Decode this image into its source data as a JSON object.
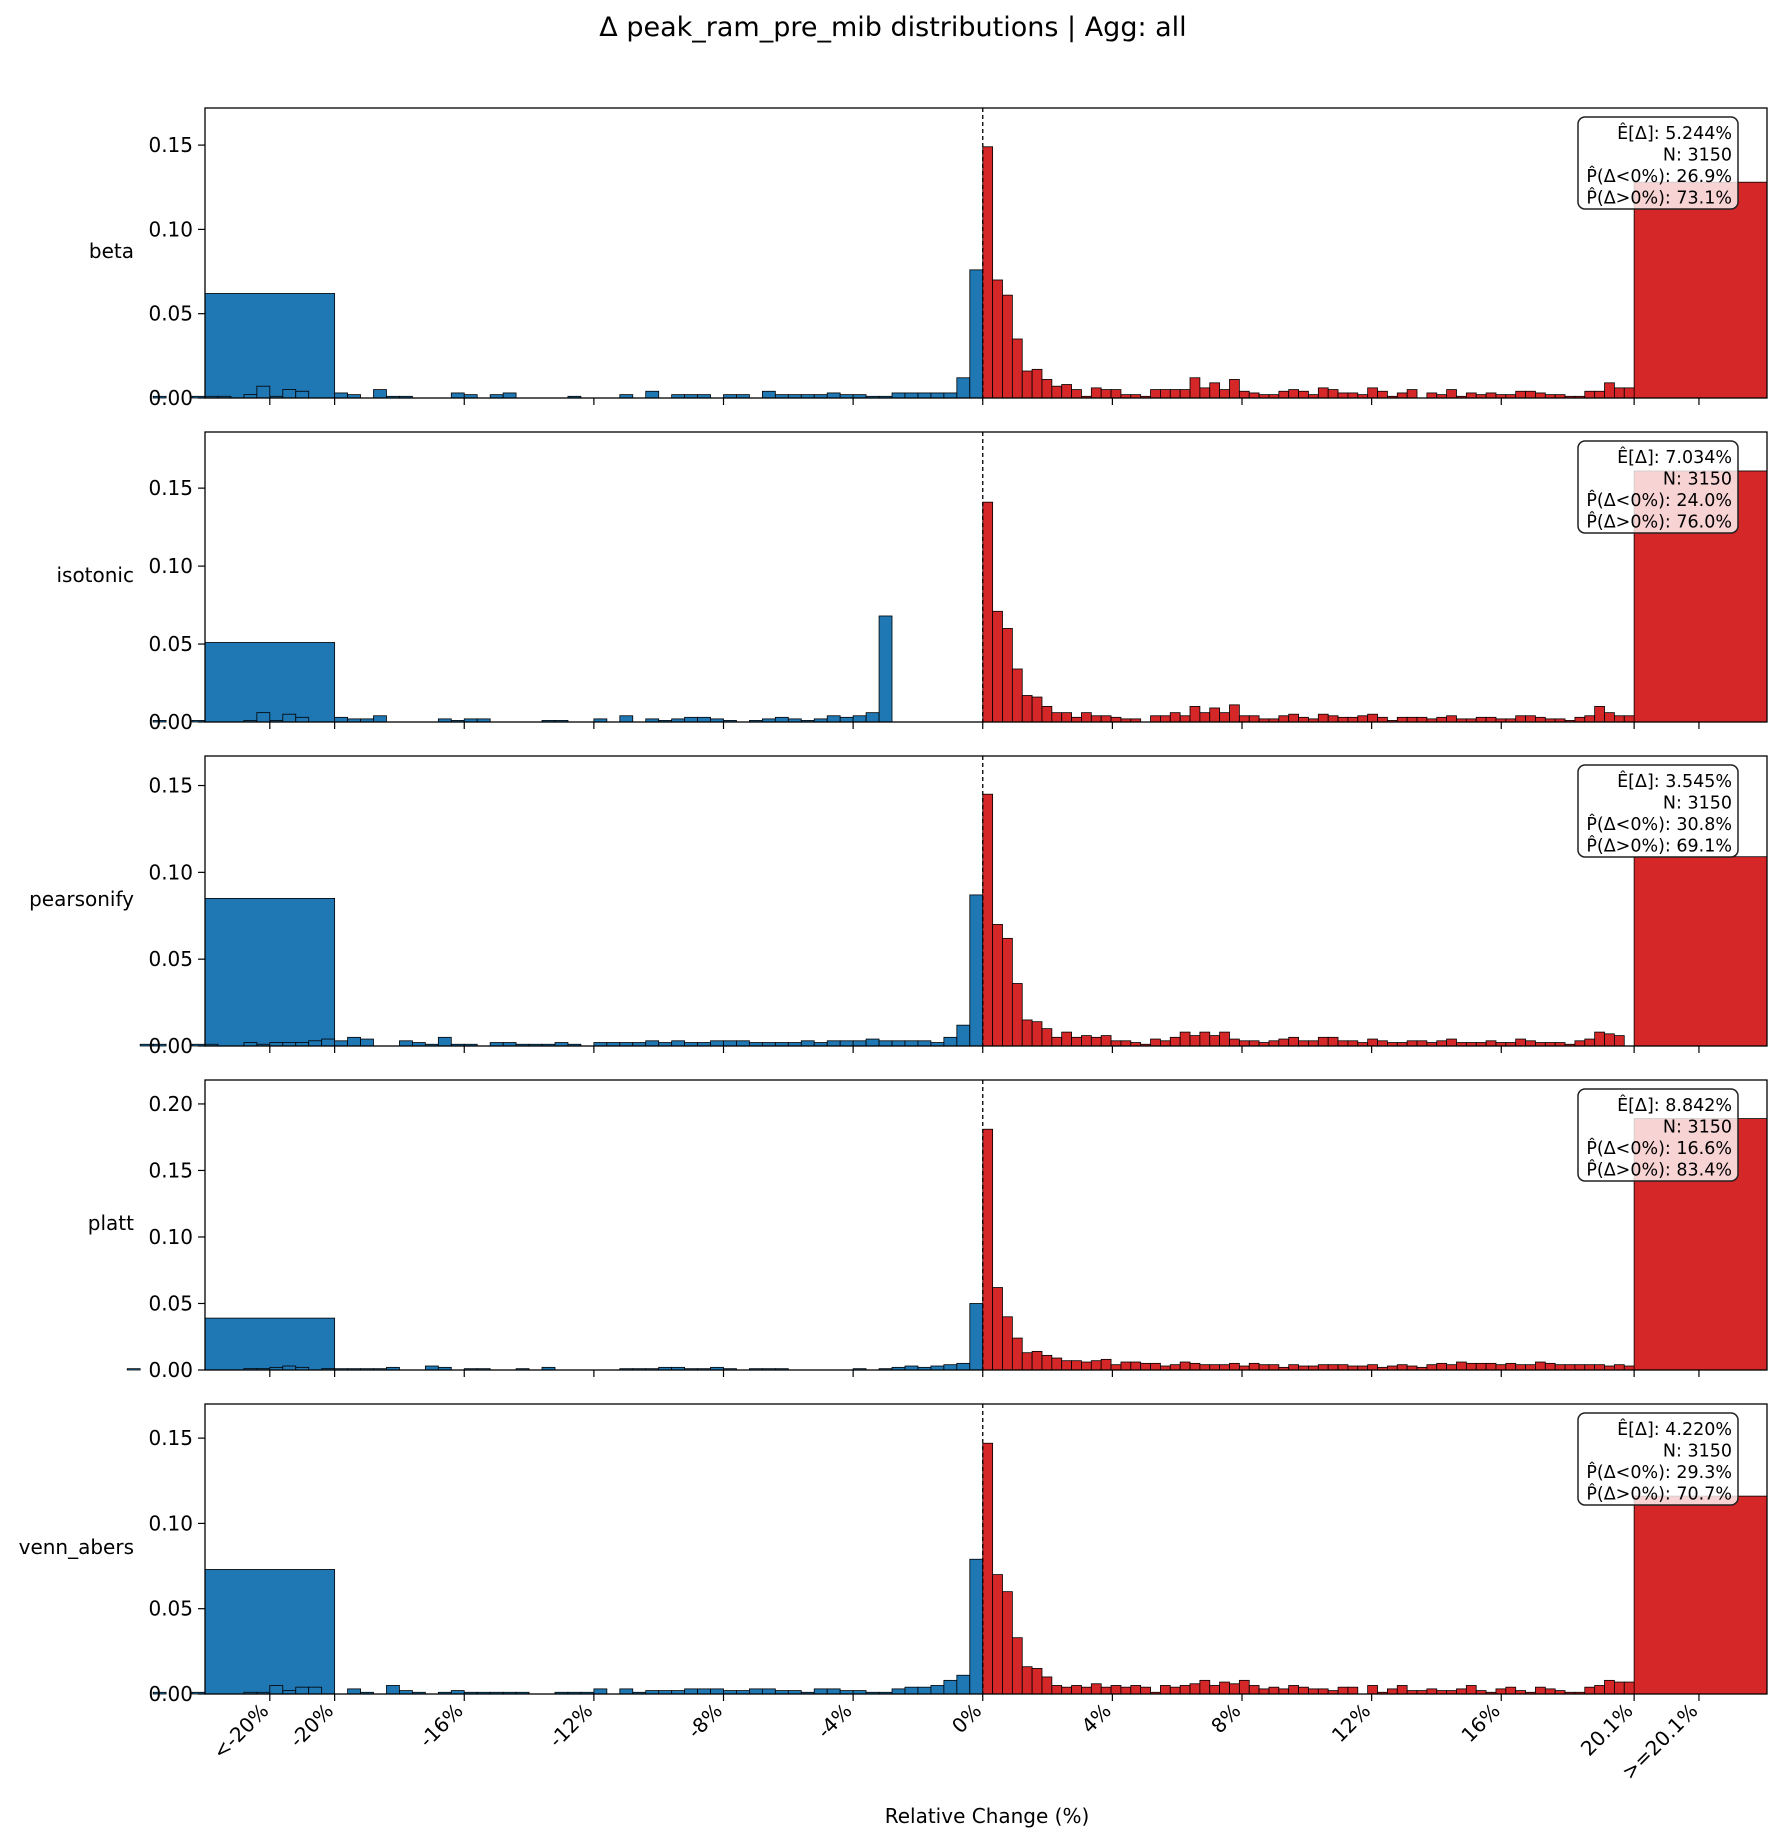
{
  "figure": {
    "title": "Δ peak_ram_pre_mib distributions | Agg: all",
    "xlabel": "Relative Change (%)"
  },
  "colors": {
    "negative": "#1f77b4",
    "positive": "#d62728",
    "edge": "#000000"
  },
  "chart_data": {
    "type": "histogram",
    "x_tick_labels": [
      "<-20%",
      "-20%",
      "-16%",
      "-12%",
      "-8%",
      "-4%",
      "0%",
      "4%",
      "8%",
      "12%",
      "16%",
      "20.1%",
      ">=20.1%"
    ],
    "x_tick_values": [
      -22,
      -20,
      -16,
      -12,
      -8,
      -4,
      0,
      4,
      8,
      12,
      16,
      20.1,
      22.1
    ],
    "xlim": [
      -24,
      24.2
    ],
    "bin_width": 0.4,
    "outlier_bins": {
      "low": [
        -24,
        -20
      ],
      "high": [
        20.1,
        24.2
      ]
    },
    "panels": [
      {
        "label": "beta",
        "ylim": [
          0,
          0.172
        ],
        "yticks": [
          "0.00",
          "0.05",
          "0.10",
          "0.15"
        ],
        "stats": [
          "Ê[Δ]: 5.244%",
          "N: 3150",
          "P̂(Δ<0%): 26.9%",
          "P̂(Δ>0%): 73.1%"
        ],
        "low_outlier": 0.062,
        "high_outlier": 0.128,
        "neg": [
          0.0,
          0.0,
          0.001,
          0.0,
          0.0,
          0.001,
          0.001,
          0.001,
          0.0,
          0.002,
          0.007,
          0.001,
          0.005,
          0.004,
          0.0,
          0.0,
          0.003,
          0.002,
          0.0,
          0.005,
          0.001,
          0.001,
          0.0,
          0.0,
          0.0,
          0.003,
          0.002,
          0.0,
          0.002,
          0.003,
          0.0,
          0.0,
          0.0,
          0.0,
          0.001,
          0.0,
          0.0,
          0.0,
          0.002,
          0.0,
          0.004,
          0.0,
          0.002,
          0.002,
          0.002,
          0.0,
          0.002,
          0.002,
          0.0,
          0.004,
          0.002,
          0.002,
          0.002,
          0.002,
          0.003,
          0.002,
          0.002,
          0.001,
          0.001,
          0.003,
          0.003,
          0.003,
          0.003,
          0.003,
          0.012,
          0.076
        ],
        "pos": [
          0.149,
          0.07,
          0.061,
          0.035,
          0.016,
          0.017,
          0.011,
          0.007,
          0.008,
          0.005,
          0.001,
          0.006,
          0.005,
          0.005,
          0.002,
          0.002,
          0.001,
          0.005,
          0.005,
          0.005,
          0.005,
          0.012,
          0.006,
          0.009,
          0.005,
          0.011,
          0.004,
          0.003,
          0.002,
          0.002,
          0.004,
          0.005,
          0.004,
          0.002,
          0.006,
          0.005,
          0.003,
          0.003,
          0.002,
          0.006,
          0.004,
          0.001,
          0.003,
          0.005,
          0.0,
          0.003,
          0.002,
          0.005,
          0.001,
          0.003,
          0.002,
          0.003,
          0.002,
          0.002,
          0.004,
          0.004,
          0.003,
          0.002,
          0.002,
          0.001,
          0.001,
          0.004,
          0.004,
          0.009,
          0.006,
          0.006
        ]
      },
      {
        "label": "isotonic",
        "ylim": [
          0,
          0.186
        ],
        "yticks": [
          "0.00",
          "0.05",
          "0.10",
          "0.15"
        ],
        "stats": [
          "Ê[Δ]: 7.034%",
          "N: 3150",
          "P̂(Δ<0%): 24.0%",
          "P̂(Δ>0%): 76.0%"
        ],
        "low_outlier": 0.051,
        "high_outlier": 0.161,
        "neg": [
          0.0,
          0.0,
          0.001,
          0.0,
          0.0,
          0.001,
          0.0,
          0.0,
          0.0,
          0.001,
          0.006,
          0.001,
          0.005,
          0.003,
          0.0,
          0.0,
          0.003,
          0.002,
          0.002,
          0.004,
          0.0,
          0.0,
          0.0,
          0.0,
          0.002,
          0.001,
          0.002,
          0.002,
          0.0,
          0.0,
          0.0,
          0.0,
          0.001,
          0.001,
          0.0,
          0.0,
          0.002,
          0.0,
          0.004,
          0.0,
          0.002,
          0.001,
          0.002,
          0.003,
          0.003,
          0.002,
          0.001,
          0.0,
          0.001,
          0.002,
          0.003,
          0.002,
          0.001,
          0.002,
          0.004,
          0.003,
          0.004,
          0.006,
          0.068,
          0.0,
          0.0,
          0.0,
          0.0,
          0.0,
          0.0,
          0.0
        ],
        "pos": [
          0.141,
          0.071,
          0.06,
          0.034,
          0.017,
          0.016,
          0.01,
          0.006,
          0.006,
          0.003,
          0.006,
          0.004,
          0.004,
          0.003,
          0.002,
          0.002,
          0.0,
          0.004,
          0.004,
          0.006,
          0.004,
          0.01,
          0.006,
          0.009,
          0.006,
          0.011,
          0.004,
          0.004,
          0.002,
          0.002,
          0.004,
          0.005,
          0.003,
          0.002,
          0.005,
          0.004,
          0.003,
          0.003,
          0.004,
          0.005,
          0.003,
          0.001,
          0.003,
          0.003,
          0.003,
          0.002,
          0.003,
          0.004,
          0.002,
          0.002,
          0.003,
          0.003,
          0.002,
          0.002,
          0.004,
          0.004,
          0.003,
          0.002,
          0.002,
          0.001,
          0.003,
          0.004,
          0.01,
          0.006,
          0.004,
          0.004
        ]
      },
      {
        "label": "pearsonify",
        "ylim": [
          0,
          0.167
        ],
        "yticks": [
          "0.00",
          "0.05",
          "0.10",
          "0.15"
        ],
        "stats": [
          "Ê[Δ]: 3.545%",
          "N: 3150",
          "P̂(Δ<0%): 30.8%",
          "P̂(Δ>0%): 69.1%"
        ],
        "low_outlier": 0.085,
        "high_outlier": 0.109,
        "neg": [
          0.0,
          0.001,
          0.001,
          0.0,
          0.0,
          0.001,
          0.001,
          0.0,
          0.0,
          0.002,
          0.001,
          0.002,
          0.002,
          0.002,
          0.003,
          0.004,
          0.003,
          0.005,
          0.004,
          0.0,
          0.0,
          0.003,
          0.002,
          0.001,
          0.005,
          0.001,
          0.001,
          0.0,
          0.002,
          0.002,
          0.001,
          0.001,
          0.001,
          0.002,
          0.001,
          0.0,
          0.002,
          0.002,
          0.002,
          0.002,
          0.003,
          0.002,
          0.003,
          0.002,
          0.002,
          0.003,
          0.003,
          0.003,
          0.002,
          0.002,
          0.002,
          0.002,
          0.003,
          0.002,
          0.003,
          0.003,
          0.003,
          0.004,
          0.003,
          0.003,
          0.003,
          0.003,
          0.002,
          0.005,
          0.012,
          0.087
        ],
        "pos": [
          0.145,
          0.07,
          0.062,
          0.036,
          0.015,
          0.014,
          0.01,
          0.005,
          0.008,
          0.005,
          0.006,
          0.005,
          0.006,
          0.003,
          0.003,
          0.002,
          0.001,
          0.004,
          0.003,
          0.005,
          0.008,
          0.006,
          0.008,
          0.006,
          0.008,
          0.004,
          0.003,
          0.003,
          0.002,
          0.003,
          0.004,
          0.005,
          0.003,
          0.003,
          0.005,
          0.005,
          0.003,
          0.003,
          0.002,
          0.004,
          0.003,
          0.002,
          0.002,
          0.003,
          0.003,
          0.002,
          0.003,
          0.004,
          0.002,
          0.002,
          0.002,
          0.003,
          0.002,
          0.002,
          0.004,
          0.003,
          0.002,
          0.002,
          0.002,
          0.001,
          0.003,
          0.004,
          0.008,
          0.007,
          0.006,
          0.0
        ]
      },
      {
        "label": "platt",
        "ylim": [
          0,
          0.218
        ],
        "yticks": [
          "0.00",
          "0.05",
          "0.10",
          "0.15",
          "0.20"
        ],
        "stats": [
          "Ê[Δ]: 8.842%",
          "N: 3150",
          "P̂(Δ<0%): 16.6%",
          "P̂(Δ>0%): 83.4%"
        ],
        "low_outlier": 0.039,
        "high_outlier": 0.189,
        "neg": [
          0.001,
          0.0,
          0.0,
          0.0,
          0.0,
          0.0,
          0.0,
          0.0,
          0.0,
          0.001,
          0.001,
          0.002,
          0.003,
          0.002,
          0.0,
          0.001,
          0.001,
          0.001,
          0.001,
          0.001,
          0.002,
          0.0,
          0.0,
          0.003,
          0.002,
          0.0,
          0.001,
          0.001,
          0.0,
          0.0,
          0.001,
          0.0,
          0.002,
          0.0,
          0.0,
          0.0,
          0.0,
          0.0,
          0.001,
          0.001,
          0.001,
          0.002,
          0.002,
          0.001,
          0.001,
          0.002,
          0.001,
          0.0,
          0.001,
          0.001,
          0.001,
          0.0,
          0.0,
          0.0,
          0.0,
          0.0,
          0.001,
          0.0,
          0.001,
          0.002,
          0.003,
          0.002,
          0.003,
          0.004,
          0.005,
          0.05
        ],
        "pos": [
          0.181,
          0.062,
          0.04,
          0.024,
          0.013,
          0.014,
          0.011,
          0.009,
          0.007,
          0.007,
          0.006,
          0.007,
          0.008,
          0.004,
          0.006,
          0.006,
          0.005,
          0.005,
          0.003,
          0.004,
          0.006,
          0.005,
          0.004,
          0.004,
          0.004,
          0.005,
          0.003,
          0.005,
          0.004,
          0.004,
          0.002,
          0.004,
          0.003,
          0.003,
          0.004,
          0.004,
          0.004,
          0.003,
          0.003,
          0.004,
          0.002,
          0.003,
          0.004,
          0.003,
          0.002,
          0.004,
          0.005,
          0.004,
          0.006,
          0.005,
          0.005,
          0.005,
          0.004,
          0.005,
          0.004,
          0.004,
          0.006,
          0.005,
          0.004,
          0.004,
          0.004,
          0.004,
          0.004,
          0.003,
          0.004,
          0.003
        ]
      },
      {
        "label": "venn_abers",
        "ylim": [
          0,
          0.17
        ],
        "yticks": [
          "0.00",
          "0.05",
          "0.10",
          "0.15"
        ],
        "stats": [
          "Ê[Δ]: 4.220%",
          "N: 3150",
          "P̂(Δ<0%): 29.3%",
          "P̂(Δ>0%): 70.7%"
        ],
        "low_outlier": 0.073,
        "high_outlier": 0.116,
        "neg": [
          0.0,
          0.0,
          0.001,
          0.0,
          0.0,
          0.001,
          0.0,
          0.0,
          0.0,
          0.001,
          0.001,
          0.005,
          0.002,
          0.004,
          0.004,
          0.0,
          0.0,
          0.003,
          0.001,
          0.0,
          0.005,
          0.002,
          0.001,
          0.0,
          0.001,
          0.002,
          0.001,
          0.001,
          0.001,
          0.001,
          0.001,
          0.0,
          0.0,
          0.001,
          0.001,
          0.001,
          0.003,
          0.0,
          0.003,
          0.001,
          0.002,
          0.002,
          0.002,
          0.003,
          0.003,
          0.003,
          0.002,
          0.002,
          0.003,
          0.003,
          0.002,
          0.002,
          0.001,
          0.003,
          0.003,
          0.002,
          0.002,
          0.001,
          0.001,
          0.003,
          0.004,
          0.004,
          0.005,
          0.008,
          0.011,
          0.079
        ],
        "pos": [
          0.147,
          0.07,
          0.06,
          0.033,
          0.016,
          0.015,
          0.01,
          0.005,
          0.004,
          0.005,
          0.004,
          0.006,
          0.004,
          0.005,
          0.004,
          0.005,
          0.004,
          0.001,
          0.005,
          0.004,
          0.005,
          0.006,
          0.008,
          0.005,
          0.007,
          0.006,
          0.008,
          0.005,
          0.003,
          0.004,
          0.003,
          0.005,
          0.004,
          0.003,
          0.003,
          0.002,
          0.004,
          0.004,
          0.0,
          0.005,
          0.001,
          0.003,
          0.005,
          0.002,
          0.002,
          0.003,
          0.002,
          0.002,
          0.003,
          0.005,
          0.002,
          0.001,
          0.003,
          0.004,
          0.002,
          0.001,
          0.004,
          0.003,
          0.002,
          0.001,
          0.001,
          0.004,
          0.005,
          0.008,
          0.007,
          0.007
        ]
      }
    ]
  }
}
